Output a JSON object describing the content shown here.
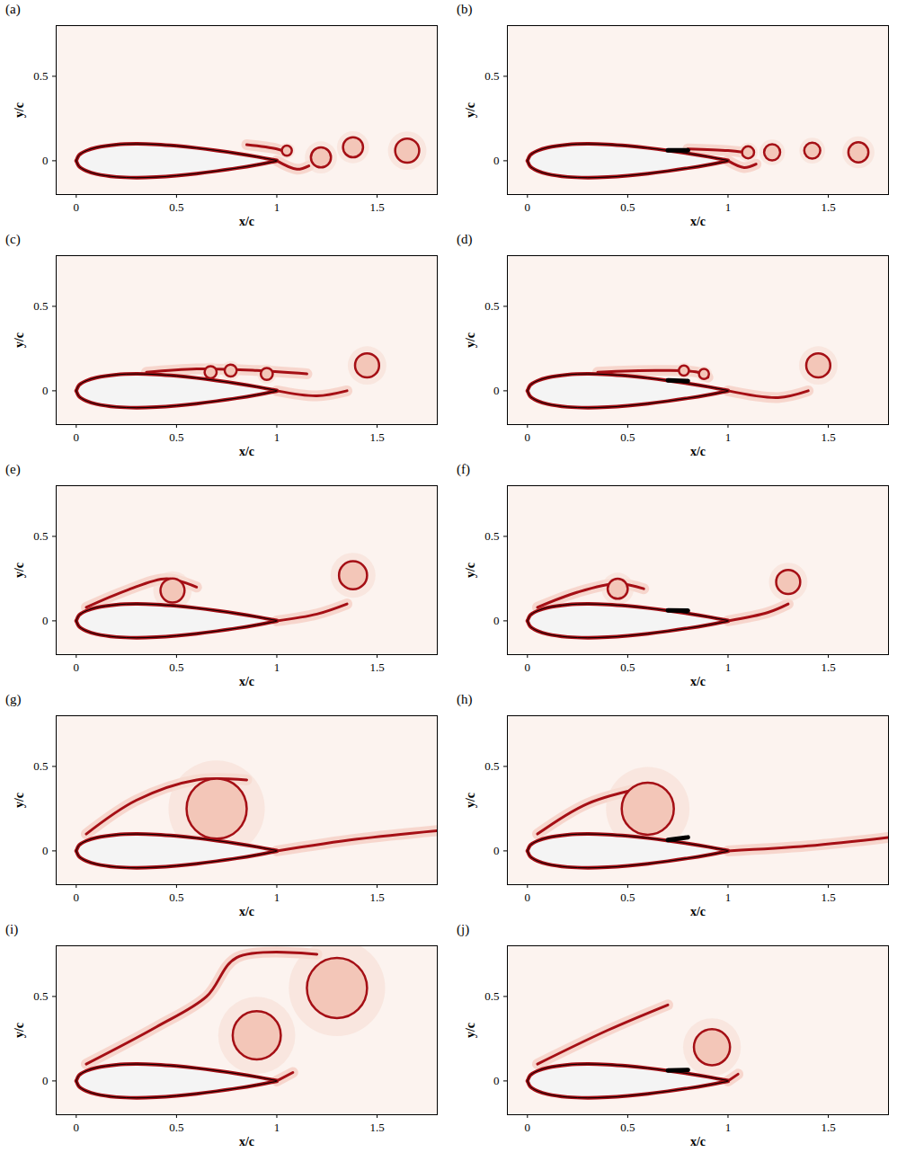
{
  "airfoil": {
    "x": [
      0,
      0.0125,
      0.025,
      0.05,
      0.1,
      0.2,
      0.3,
      0.4,
      0.5,
      0.6,
      0.7,
      0.8,
      0.9,
      1.0
    ],
    "y_upper": [
      0,
      0.0315,
      0.0436,
      0.0592,
      0.0781,
      0.0956,
      0.1001,
      0.0967,
      0.0882,
      0.076,
      0.061,
      0.0438,
      0.0242,
      0.0021
    ],
    "y_lower": [
      0,
      -0.0315,
      -0.0436,
      -0.0592,
      -0.0781,
      -0.0956,
      -0.1001,
      -0.0967,
      -0.0882,
      -0.076,
      -0.061,
      -0.0438,
      -0.0242,
      -0.0021
    ]
  },
  "chart_data": [
    {
      "type": "contour",
      "panel": "(a)",
      "xlabel": "x/c",
      "ylabel": "y/c",
      "xlim": [
        -0.1,
        1.8
      ],
      "ylim": [
        -0.2,
        0.8
      ],
      "xticks": [
        0,
        0.5,
        1,
        1.5
      ],
      "yticks": [
        0,
        0.5
      ],
      "color": "#a50f15",
      "shear_layers": [
        [
          [
            0.85,
            0.095
          ],
          [
            1.0,
            0.07
          ],
          [
            1.05,
            0.05
          ]
        ],
        [
          [
            1.0,
            0.0
          ],
          [
            1.1,
            -0.05
          ],
          [
            1.16,
            -0.03
          ]
        ]
      ],
      "vortices": [
        [
          1.05,
          0.06,
          0.025
        ],
        [
          1.22,
          0.02,
          0.05
        ],
        [
          1.38,
          0.08,
          0.05
        ],
        [
          1.65,
          0.06,
          0.06
        ]
      ]
    },
    {
      "type": "contour",
      "panel": "(b)",
      "xlabel": "x/c",
      "ylabel": "y/c",
      "xlim": [
        -0.1,
        1.8
      ],
      "ylim": [
        -0.2,
        0.8
      ],
      "xticks": [
        0,
        0.5,
        1,
        1.5
      ],
      "yticks": [
        0,
        0.5
      ],
      "color": "#a50f15",
      "flap": [
        [
          0.7,
          0.062
        ],
        [
          0.8,
          0.062
        ]
      ],
      "shear_layers": [
        [
          [
            0.8,
            0.07
          ],
          [
            1.0,
            0.06
          ],
          [
            1.08,
            0.05
          ]
        ],
        [
          [
            1.0,
            0.0
          ],
          [
            1.08,
            -0.04
          ],
          [
            1.14,
            -0.02
          ]
        ]
      ],
      "vortices": [
        [
          1.1,
          0.05,
          0.03
        ],
        [
          1.22,
          0.05,
          0.04
        ],
        [
          1.42,
          0.06,
          0.04
        ],
        [
          1.65,
          0.05,
          0.05
        ]
      ]
    },
    {
      "type": "contour",
      "panel": "(c)",
      "xlabel": "x/c",
      "ylabel": "y/c",
      "xlim": [
        -0.1,
        1.8
      ],
      "ylim": [
        -0.2,
        0.8
      ],
      "xticks": [
        0,
        0.5,
        1,
        1.5
      ],
      "yticks": [
        0,
        0.5
      ],
      "color": "#a50f15",
      "shear_layers": [
        [
          [
            0.35,
            0.11
          ],
          [
            0.6,
            0.13
          ],
          [
            0.9,
            0.12
          ],
          [
            1.15,
            0.1
          ]
        ],
        [
          [
            1.0,
            0.0
          ],
          [
            1.2,
            -0.03
          ],
          [
            1.35,
            0.0
          ]
        ]
      ],
      "vortices": [
        [
          0.67,
          0.11,
          0.03
        ],
        [
          0.77,
          0.12,
          0.03
        ],
        [
          0.95,
          0.1,
          0.03
        ],
        [
          1.45,
          0.15,
          0.06
        ]
      ]
    },
    {
      "type": "contour",
      "panel": "(d)",
      "xlabel": "x/c",
      "ylabel": "y/c",
      "xlim": [
        -0.1,
        1.8
      ],
      "ylim": [
        -0.2,
        0.8
      ],
      "xticks": [
        0,
        0.5,
        1,
        1.5
      ],
      "yticks": [
        0,
        0.5
      ],
      "color": "#a50f15",
      "flap": [
        [
          0.7,
          0.062
        ],
        [
          0.8,
          0.058
        ]
      ],
      "shear_layers": [
        [
          [
            0.35,
            0.11
          ],
          [
            0.65,
            0.12
          ],
          [
            0.85,
            0.11
          ],
          [
            0.9,
            0.08
          ]
        ],
        [
          [
            1.0,
            0.0
          ],
          [
            1.25,
            -0.04
          ],
          [
            1.4,
            0.0
          ]
        ]
      ],
      "vortices": [
        [
          0.78,
          0.12,
          0.025
        ],
        [
          0.88,
          0.1,
          0.025
        ],
        [
          1.45,
          0.15,
          0.06
        ]
      ]
    },
    {
      "type": "contour",
      "panel": "(e)",
      "xlabel": "x/c",
      "ylabel": "y/c",
      "xlim": [
        -0.1,
        1.8
      ],
      "ylim": [
        -0.2,
        0.8
      ],
      "xticks": [
        0,
        0.5,
        1,
        1.5
      ],
      "yticks": [
        0,
        0.5
      ],
      "color": "#a50f15",
      "shear_layers": [
        [
          [
            0.05,
            0.08
          ],
          [
            0.25,
            0.18
          ],
          [
            0.45,
            0.25
          ],
          [
            0.6,
            0.2
          ]
        ],
        [
          [
            1.0,
            0.0
          ],
          [
            1.2,
            0.04
          ],
          [
            1.35,
            0.1
          ]
        ]
      ],
      "vortices": [
        [
          0.48,
          0.18,
          0.06
        ],
        [
          1.38,
          0.27,
          0.07
        ]
      ]
    },
    {
      "type": "contour",
      "panel": "(f)",
      "xlabel": "x/c",
      "ylabel": "y/c",
      "xlim": [
        -0.1,
        1.8
      ],
      "ylim": [
        -0.2,
        0.8
      ],
      "xticks": [
        0,
        0.5,
        1,
        1.5
      ],
      "yticks": [
        0,
        0.5
      ],
      "color": "#a50f15",
      "flap": [
        [
          0.7,
          0.062
        ],
        [
          0.8,
          0.06
        ]
      ],
      "shear_layers": [
        [
          [
            0.05,
            0.08
          ],
          [
            0.25,
            0.17
          ],
          [
            0.45,
            0.22
          ],
          [
            0.58,
            0.19
          ]
        ],
        [
          [
            1.0,
            0.0
          ],
          [
            1.2,
            0.05
          ],
          [
            1.3,
            0.1
          ]
        ]
      ],
      "vortices": [
        [
          0.45,
          0.19,
          0.05
        ],
        [
          1.3,
          0.23,
          0.06
        ]
      ]
    },
    {
      "type": "contour",
      "panel": "(g)",
      "xlabel": "x/c",
      "ylabel": "y/c",
      "xlim": [
        -0.1,
        1.8
      ],
      "ylim": [
        -0.2,
        0.8
      ],
      "xticks": [
        0,
        0.5,
        1,
        1.5
      ],
      "yticks": [
        0,
        0.5
      ],
      "color": "#a50f15",
      "shear_layers": [
        [
          [
            0.05,
            0.1
          ],
          [
            0.3,
            0.3
          ],
          [
            0.6,
            0.42
          ],
          [
            0.85,
            0.42
          ]
        ],
        [
          [
            1.0,
            0.0
          ],
          [
            1.4,
            0.07
          ],
          [
            1.8,
            0.12
          ]
        ]
      ],
      "vortices": [
        [
          0.7,
          0.25,
          0.15
        ]
      ]
    },
    {
      "type": "contour",
      "panel": "(h)",
      "xlabel": "x/c",
      "ylabel": "y/c",
      "xlim": [
        -0.1,
        1.8
      ],
      "ylim": [
        -0.2,
        0.8
      ],
      "xticks": [
        0,
        0.5,
        1,
        1.5
      ],
      "yticks": [
        0,
        0.5
      ],
      "color": "#a50f15",
      "flap": [
        [
          0.7,
          0.065
        ],
        [
          0.8,
          0.08
        ]
      ],
      "shear_layers": [
        [
          [
            0.05,
            0.1
          ],
          [
            0.3,
            0.28
          ],
          [
            0.6,
            0.38
          ]
        ],
        [
          [
            1.0,
            0.0
          ],
          [
            1.4,
            0.03
          ],
          [
            1.8,
            0.08
          ]
        ]
      ],
      "vortices": [
        [
          0.6,
          0.25,
          0.13
        ]
      ]
    },
    {
      "type": "contour",
      "panel": "(i)",
      "xlabel": "x/c",
      "ylabel": "y/c",
      "xlim": [
        -0.1,
        1.8
      ],
      "ylim": [
        -0.2,
        0.8
      ],
      "xticks": [
        0,
        0.5,
        1,
        1.5
      ],
      "yticks": [
        0,
        0.5
      ],
      "color": "#a50f15",
      "shear_layers": [
        [
          [
            0.05,
            0.1
          ],
          [
            0.4,
            0.32
          ],
          [
            0.65,
            0.5
          ],
          [
            0.8,
            0.73
          ],
          [
            1.2,
            0.75
          ]
        ],
        [
          [
            1.0,
            0.0
          ],
          [
            1.08,
            0.05
          ]
        ]
      ],
      "vortices": [
        [
          1.3,
          0.55,
          0.15
        ],
        [
          0.9,
          0.27,
          0.12
        ]
      ]
    },
    {
      "type": "contour",
      "panel": "(j)",
      "xlabel": "x/c",
      "ylabel": "y/c",
      "xlim": [
        -0.1,
        1.8
      ],
      "ylim": [
        -0.2,
        0.8
      ],
      "xticks": [
        0,
        0.5,
        1,
        1.5
      ],
      "yticks": [
        0,
        0.5
      ],
      "color": "#a50f15",
      "flap": [
        [
          0.7,
          0.062
        ],
        [
          0.8,
          0.065
        ]
      ],
      "shear_layers": [
        [
          [
            0.05,
            0.1
          ],
          [
            0.4,
            0.3
          ],
          [
            0.7,
            0.45
          ]
        ],
        [
          [
            1.0,
            0.0
          ],
          [
            1.05,
            0.04
          ]
        ]
      ],
      "vortices": [
        [
          0.92,
          0.2,
          0.09
        ]
      ]
    }
  ]
}
